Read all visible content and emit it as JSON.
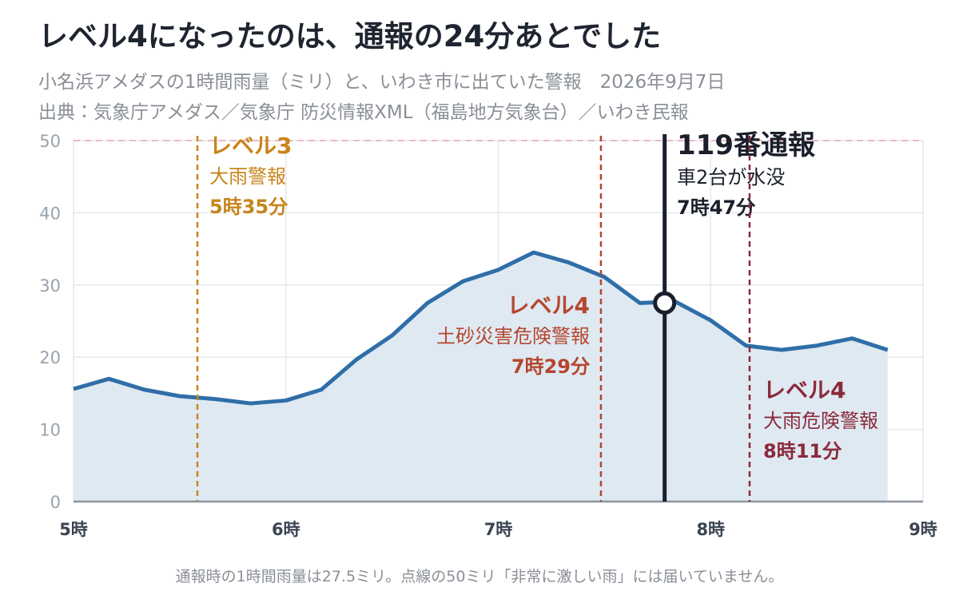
{
  "chart_data": {
    "type": "area",
    "title": "レベル4になったのは、通報の24分あとでした",
    "subtitle": "小名浜アメダスの1時間雨量（ミリ）と、いわき市に出ていた警報　2026年9月7日",
    "source": "出典：気象庁アメダス／気象庁 防災情報XML（福島地方気象台）／いわき民報",
    "footnote": "通報時の1時間雨量は27.5ミリ。点線の50ミリ「非常に激しい雨」には届いていません。",
    "x": [
      300,
      310,
      320,
      330,
      340,
      350,
      360,
      370,
      380,
      390,
      400,
      410,
      420,
      430,
      440,
      450,
      460,
      470,
      480,
      490,
      500,
      510,
      520,
      530
    ],
    "series": [
      {
        "color": "#2f6ea8",
        "fill": "#dfe9f2",
        "values": [
          15.6,
          17.0,
          15.5,
          14.6,
          14.2,
          13.6,
          14.0,
          15.5,
          19.7,
          23.0,
          27.5,
          30.5,
          32.1,
          34.5,
          33.1,
          31.1,
          27.5,
          27.7,
          25.1,
          21.6,
          21.0,
          21.6,
          22.6,
          21.0
        ]
      }
    ],
    "xlim": [
      300,
      540
    ],
    "xticks": [
      {
        "value": 300,
        "label": "5時"
      },
      {
        "value": 360,
        "label": "6時"
      },
      {
        "value": 420,
        "label": "7時"
      },
      {
        "value": 480,
        "label": "8時"
      },
      {
        "value": 540,
        "label": "9時"
      }
    ],
    "ylim": [
      0,
      50
    ],
    "yticks": [
      0,
      10,
      20,
      30,
      40,
      50
    ],
    "grid": true,
    "reference_line": {
      "value": 50,
      "color": "#e8a5ae"
    },
    "events": [
      {
        "name": "レベル3",
        "label": "大雨警報",
        "time_label": "5時35分",
        "x": 335,
        "color": "#c8841a",
        "style": "dashed"
      },
      {
        "name": "レベル4",
        "label": "土砂災害危険警報",
        "time_label": "7時29分",
        "x": 449,
        "color": "#b5462e",
        "style": "dashed"
      },
      {
        "name": "119番通報",
        "label": "車2台が水没",
        "time_label": "7時47分",
        "x": 467,
        "color": "#1a1f2b",
        "style": "solid"
      },
      {
        "name": "レベル4",
        "label": "大雨危険警報",
        "time_label": "8時11分",
        "x": 491,
        "color": "#8b2a3a",
        "style": "dashed"
      }
    ],
    "marker": {
      "x": 467,
      "y": 27.5,
      "color": "#1a1f2b"
    }
  }
}
